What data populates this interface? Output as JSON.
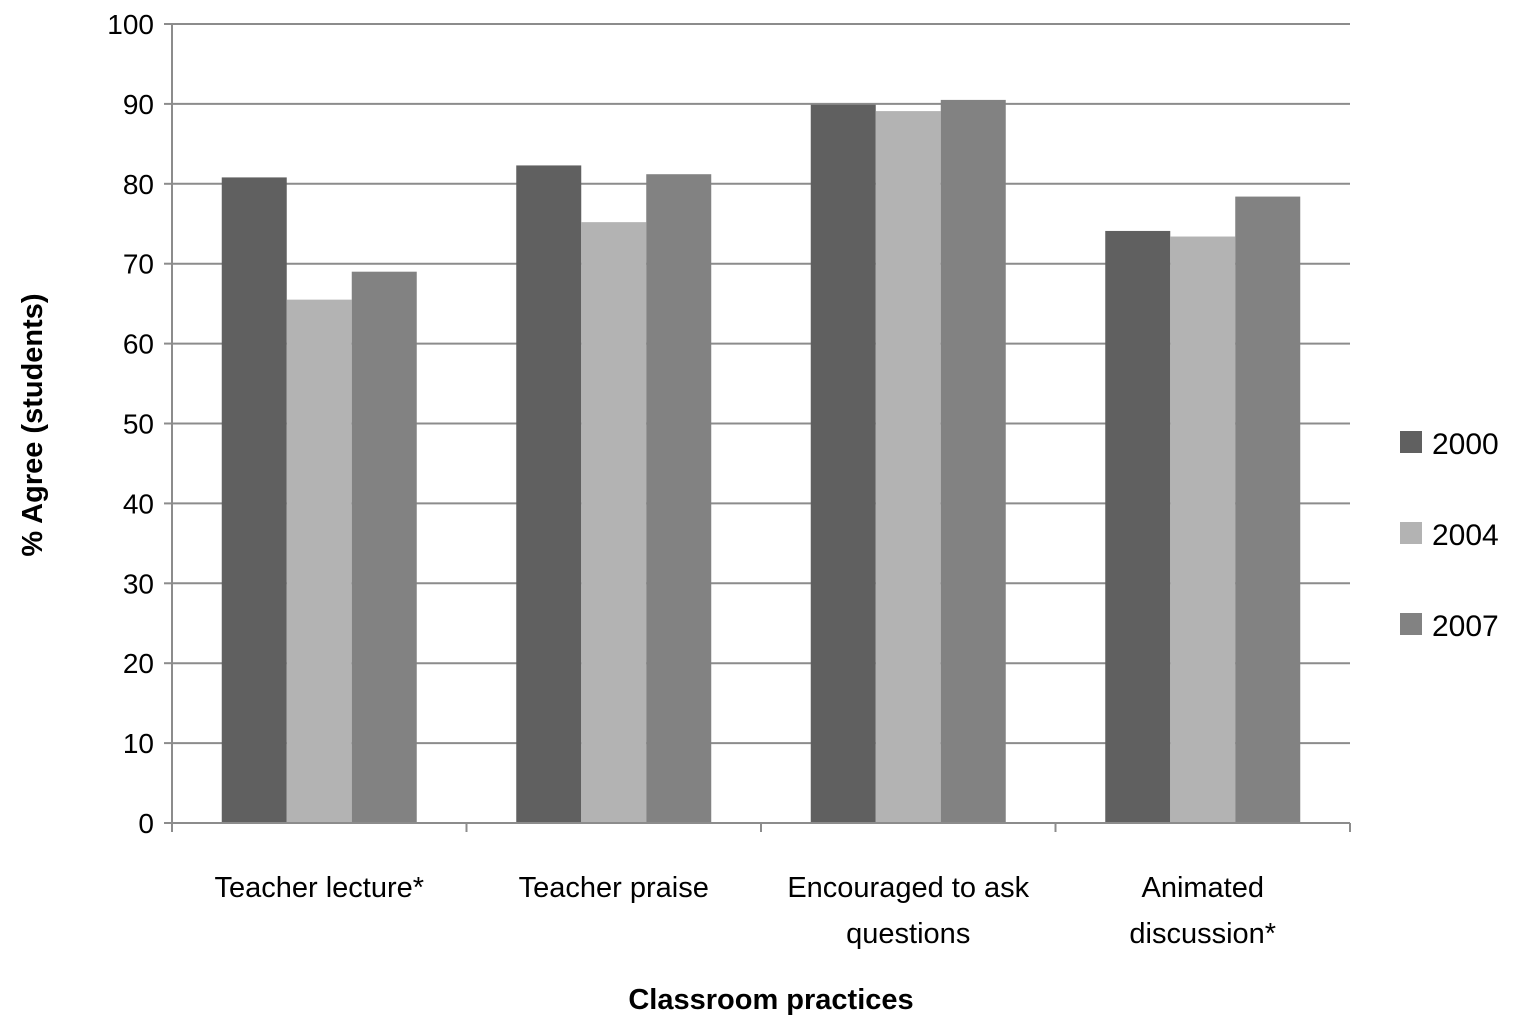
{
  "chart_data": {
    "type": "bar",
    "categories": [
      [
        "Teacher lecture*"
      ],
      [
        "Teacher praise"
      ],
      [
        "Encouraged to ask",
        "questions"
      ],
      [
        "Animated",
        "discussion*"
      ]
    ],
    "series": [
      {
        "name": "2000",
        "values": [
          80.8,
          82.3,
          89.9,
          74.1
        ],
        "color": "#606060"
      },
      {
        "name": "2004",
        "values": [
          65.5,
          75.2,
          89.1,
          73.4
        ],
        "color": "#b3b3b3"
      },
      {
        "name": "2007",
        "values": [
          69.0,
          81.2,
          90.5,
          78.4
        ],
        "color": "#828282"
      }
    ],
    "xlabel": "Classroom practices",
    "ylabel": "% Agree (students)",
    "ylim": [
      0,
      100
    ],
    "yticks": [
      0,
      10,
      20,
      30,
      40,
      50,
      60,
      70,
      80,
      90,
      100
    ],
    "grid": true,
    "legend_position": "right"
  }
}
